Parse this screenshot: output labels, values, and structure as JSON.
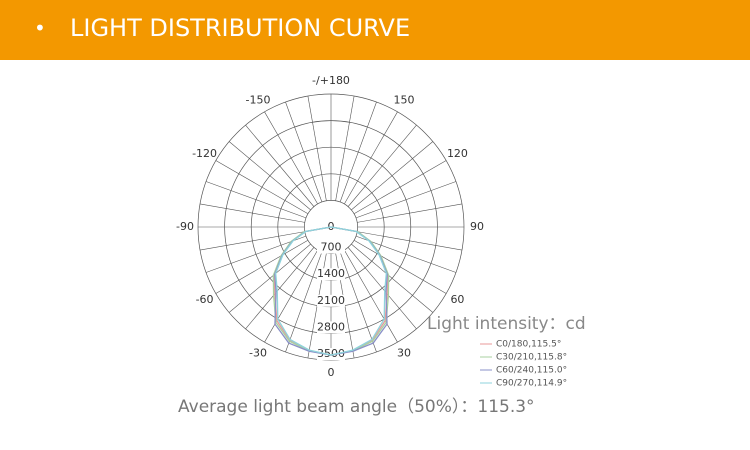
{
  "header": {
    "title": "LIGHT DISTRIBUTION CURVE"
  },
  "chart_data": {
    "type": "polar",
    "angles": [
      -90,
      -80,
      -70,
      -60,
      -50,
      -40,
      -30,
      -20,
      -10,
      0,
      10,
      20,
      30,
      40,
      50,
      60,
      70,
      80,
      90
    ],
    "angle_ticks": [
      {
        "value": 180,
        "label": "-/+180"
      },
      -150,
      150,
      -120,
      120,
      -90,
      90,
      -60,
      60,
      -30,
      30,
      0
    ],
    "rlim": [
      0,
      3500
    ],
    "rticks": [
      0,
      700,
      1400,
      2100,
      2800,
      3500
    ],
    "r_label": "Light intensity：cd",
    "series": [
      {
        "name": "C0/180,115.5°",
        "color": "#e89a9a",
        "values": [
          0,
          700,
          1100,
          1500,
          1950,
          2300,
          2850,
          3170,
          3300,
          3370,
          3300,
          3170,
          2850,
          2300,
          1950,
          1500,
          1100,
          700,
          0
        ]
      },
      {
        "name": "C30/210,115.8°",
        "color": "#a8d0a0",
        "values": [
          0,
          720,
          1120,
          1520,
          1980,
          2350,
          2900,
          3200,
          3310,
          3370,
          3310,
          3200,
          2900,
          2350,
          1980,
          1520,
          1120,
          720,
          0
        ]
      },
      {
        "name": "C60/240,115.0°",
        "color": "#8a90c8",
        "values": [
          0,
          680,
          1080,
          1480,
          1930,
          2250,
          2950,
          3250,
          3320,
          3370,
          3320,
          3250,
          2950,
          2250,
          1930,
          1480,
          1080,
          680,
          0
        ]
      },
      {
        "name": "C90/270,114.9°",
        "color": "#8fd3dc",
        "values": [
          0,
          670,
          1060,
          1460,
          1900,
          2200,
          2800,
          3150,
          3290,
          3370,
          3290,
          3150,
          2800,
          2200,
          1900,
          1460,
          1060,
          670,
          0
        ]
      }
    ],
    "note": "Average light beam angle（50%）：115.3°"
  }
}
